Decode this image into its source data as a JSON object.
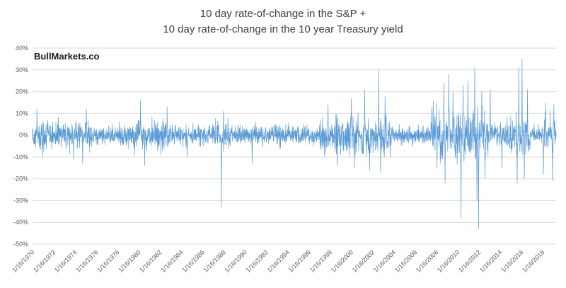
{
  "title": {
    "line1": "10 day rate-of-change in the S&P +",
    "line2": "10 day rate-of-change in the 10 year Treasury yield"
  },
  "watermark": "BullMarkets.co",
  "layout_colors": {
    "grid": "#D9D9D9",
    "tick_text": "#595959",
    "title_text": "#404040"
  },
  "chart_data": {
    "type": "line",
    "title": "10 day rate-of-change in the S&P + 10 day rate-of-change in the 10 year Treasury yield",
    "series_name": "10d ROC S&P + 10d ROC 10yr Treasury yield",
    "line_color": "#5B9BD5",
    "grid": "horizontal",
    "legend": "none",
    "baseline": 0,
    "ylim": [
      -50,
      40
    ],
    "y_tick_values": [
      40,
      30,
      20,
      10,
      0,
      -10,
      -20,
      -30,
      -40,
      -50
    ],
    "y_tick_labels": [
      "40%",
      "30%",
      "20%",
      "10%",
      "0%",
      "-10%",
      "-20%",
      "-30%",
      "-40%",
      "-50%"
    ],
    "x_domain": [
      1970.04,
      2019.3
    ],
    "x_tick_labels": [
      "1/16/1970",
      "1/16/1972",
      "1/16/1974",
      "1/16/1976",
      "1/16/1978",
      "1/16/1980",
      "1/16/1982",
      "1/16/1984",
      "1/16/1986",
      "1/16/1988",
      "1/16/1990",
      "1/16/1992",
      "1/16/1994",
      "1/16/1996",
      "1/16/1998",
      "1/16/2000",
      "1/16/2002",
      "1/16/2004",
      "1/16/2006",
      "1/16/2008",
      "1/16/2010",
      "1/16/2012",
      "1/16/2014",
      "1/16/2016",
      "1/16/2018"
    ],
    "volatility_segments": [
      {
        "start": 1970.0,
        "end": 1975.5,
        "std_pct": 3.2
      },
      {
        "start": 1975.5,
        "end": 1979.5,
        "std_pct": 2.3
      },
      {
        "start": 1979.5,
        "end": 1983.0,
        "std_pct": 3.4
      },
      {
        "start": 1983.0,
        "end": 1987.0,
        "std_pct": 2.5
      },
      {
        "start": 1987.0,
        "end": 1988.6,
        "std_pct": 3.2
      },
      {
        "start": 1988.6,
        "end": 1997.0,
        "std_pct": 2.3
      },
      {
        "start": 1997.0,
        "end": 2003.8,
        "std_pct": 4.0
      },
      {
        "start": 2003.8,
        "end": 2007.5,
        "std_pct": 2.1
      },
      {
        "start": 2007.5,
        "end": 2012.9,
        "std_pct": 5.8
      },
      {
        "start": 2012.9,
        "end": 2014.6,
        "std_pct": 2.9
      },
      {
        "start": 2014.6,
        "end": 2016.9,
        "std_pct": 4.6
      },
      {
        "start": 2016.9,
        "end": 2018.0,
        "std_pct": 2.0
      },
      {
        "start": 2018.0,
        "end": 2019.3,
        "std_pct": 4.2
      }
    ],
    "notable_spikes": [
      {
        "year": 1970.45,
        "value": 12
      },
      {
        "year": 1971.0,
        "value": -10
      },
      {
        "year": 1973.9,
        "value": -11
      },
      {
        "year": 1974.75,
        "value": -13
      },
      {
        "year": 1975.1,
        "value": 12
      },
      {
        "year": 1980.2,
        "value": 16
      },
      {
        "year": 1980.6,
        "value": -14
      },
      {
        "year": 1982.7,
        "value": 13
      },
      {
        "year": 1984.6,
        "value": -10
      },
      {
        "year": 1987.79,
        "value": -33
      },
      {
        "year": 1988.0,
        "value": 11
      },
      {
        "year": 1990.7,
        "value": -13
      },
      {
        "year": 1997.85,
        "value": 14
      },
      {
        "year": 1998.7,
        "value": -14
      },
      {
        "year": 2000.05,
        "value": 17
      },
      {
        "year": 2000.3,
        "value": -15
      },
      {
        "year": 2001.3,
        "value": 21
      },
      {
        "year": 2001.75,
        "value": -16
      },
      {
        "year": 2002.6,
        "value": 30
      },
      {
        "year": 2002.8,
        "value": -17
      },
      {
        "year": 2003.2,
        "value": 18
      },
      {
        "year": 2007.6,
        "value": 13
      },
      {
        "year": 2008.1,
        "value": -15
      },
      {
        "year": 2008.75,
        "value": 24
      },
      {
        "year": 2008.85,
        "value": -22
      },
      {
        "year": 2009.2,
        "value": 28
      },
      {
        "year": 2009.6,
        "value": 20
      },
      {
        "year": 2010.35,
        "value": -38
      },
      {
        "year": 2010.55,
        "value": 23
      },
      {
        "year": 2011.0,
        "value": 25
      },
      {
        "year": 2011.65,
        "value": 31
      },
      {
        "year": 2011.85,
        "value": -30
      },
      {
        "year": 2012.0,
        "value": -43
      },
      {
        "year": 2012.3,
        "value": 20
      },
      {
        "year": 2012.6,
        "value": -20
      },
      {
        "year": 2013.1,
        "value": 21
      },
      {
        "year": 2014.2,
        "value": -15
      },
      {
        "year": 2015.65,
        "value": -22
      },
      {
        "year": 2015.8,
        "value": 31
      },
      {
        "year": 2016.1,
        "value": 35
      },
      {
        "year": 2016.3,
        "value": -20
      },
      {
        "year": 2016.6,
        "value": 21
      },
      {
        "year": 2018.1,
        "value": -18
      },
      {
        "year": 2018.3,
        "value": 15
      },
      {
        "year": 2018.95,
        "value": -21
      },
      {
        "year": 2019.1,
        "value": 14
      }
    ]
  }
}
